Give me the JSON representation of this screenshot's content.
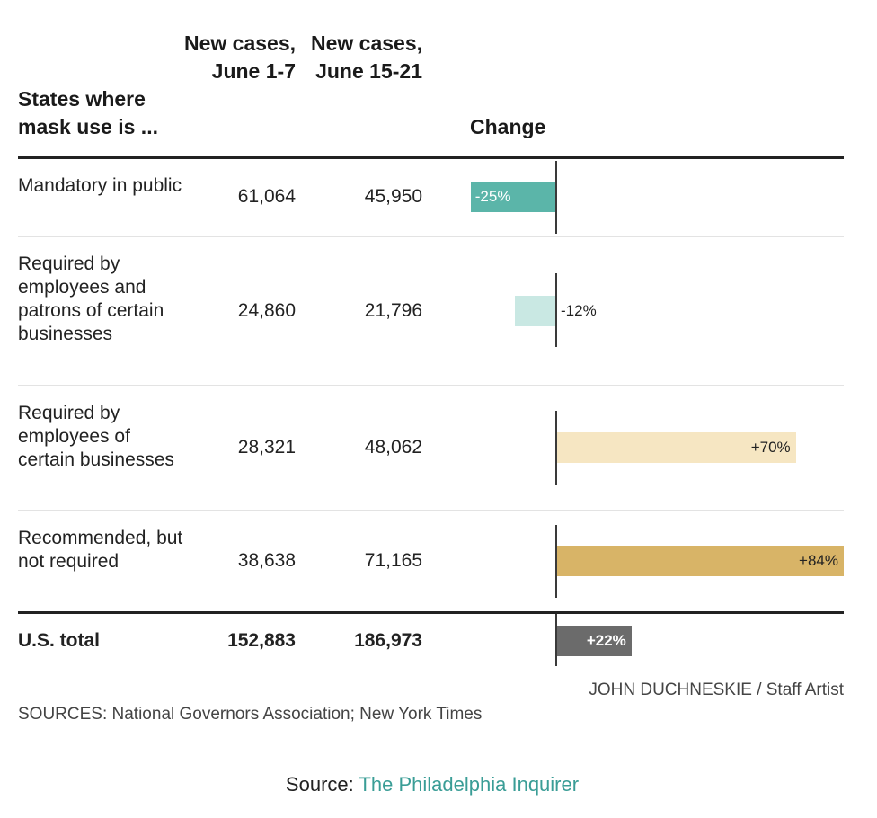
{
  "chart_data": {
    "type": "table",
    "columns": [
      "States where mask use is ...",
      "New cases, June 1-7",
      "New cases, June 15-21",
      "Change"
    ],
    "rows": [
      {
        "label": "Mandatory in public",
        "june1_7": "61,064",
        "june15_21": "45,950",
        "change": -25,
        "change_label": "-25%",
        "color": "#5bb5a9",
        "label_color": "#ffffff"
      },
      {
        "label": "Required by employees and patrons of certain businesses",
        "june1_7": "24,860",
        "june15_21": "21,796",
        "change": -12,
        "change_label": "-12%",
        "color": "#c9e8e3",
        "label_color": "#222222"
      },
      {
        "label": "Required by employees of certain businesses",
        "june1_7": "28,321",
        "june15_21": "48,062",
        "change": 70,
        "change_label": "+70%",
        "color": "#f6e6c2",
        "label_color": "#222222"
      },
      {
        "label": "Recommended, but not required",
        "june1_7": "38,638",
        "june15_21": "71,165",
        "change": 84,
        "change_label": "+84%",
        "color": "#d8b467",
        "label_color": "#222222"
      }
    ],
    "total": {
      "label": "U.S. total",
      "june1_7": "152,883",
      "june15_21": "186,973",
      "change": 22,
      "change_label": "+22%",
      "color": "#6b6b6b",
      "label_color": "#ffffff"
    }
  },
  "headers": {
    "states": "States where mask use is ...",
    "june1_7": "New cases, June 1-7",
    "june15_21": "New cases, June 15-21",
    "change": "Change"
  },
  "credit": "JOHN DUCHNESKIE / Staff Artist",
  "sources": "SOURCES: National Governors Association; New York Times",
  "footer": {
    "prefix": "Source: ",
    "link": "The Philadelphia Inquirer"
  }
}
